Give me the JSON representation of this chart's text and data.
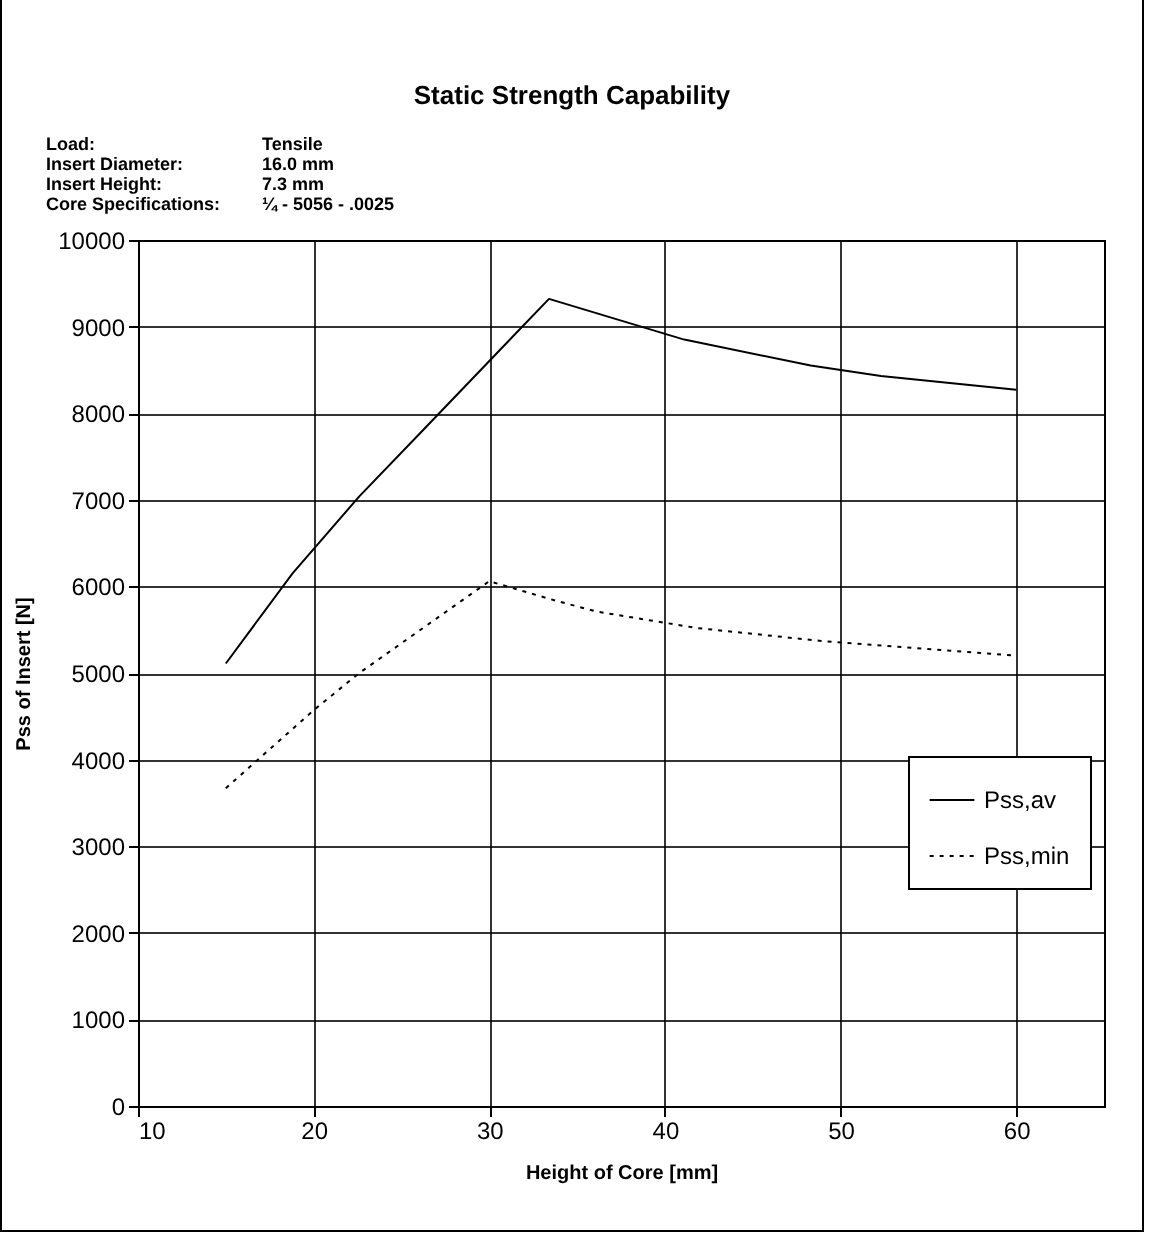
{
  "chart_data": {
    "type": "line",
    "title": "Static Strength Capability",
    "annotations": [
      "Load:",
      "Tensile",
      "Insert Diameter:",
      "16.0 mm",
      "Insert Height:",
      "7.3 mm",
      "Core Specifications:",
      "¼ - 5056 - .0025"
    ],
    "xlabel": "Height of Core [mm]",
    "ylabel": "Pss of Insert [N]",
    "series": [
      {
        "name": "Pss,av",
        "color": "#000000",
        "line_style": "solid",
        "x": [
          15,
          18.8,
          22.6,
          26.4,
          30.7,
          33.4,
          41.1,
          48.3,
          52.3,
          60
        ],
        "values": [
          5110,
          6150,
          7040,
          7840,
          8750,
          9320,
          8850,
          8550,
          8430,
          8270
        ]
      },
      {
        "name": "Pss,min",
        "color": "#000000",
        "line_style": "dotted",
        "x": [
          15,
          20,
          22.6,
          30,
          33.7,
          36.1,
          41.8,
          48.9,
          60
        ],
        "values": [
          3670,
          4570,
          5000,
          6060,
          5840,
          5710,
          5520,
          5370,
          5200
        ]
      }
    ],
    "xlim": [
      10,
      65
    ],
    "xticks": [
      10,
      20,
      30,
      40,
      50,
      60
    ],
    "ylim": [
      0,
      10000
    ],
    "yticks": [
      0,
      1000,
      2000,
      3000,
      4000,
      5000,
      6000,
      7000,
      8000,
      9000,
      10000
    ],
    "grid": true,
    "legend": "right",
    "marker": "none"
  }
}
